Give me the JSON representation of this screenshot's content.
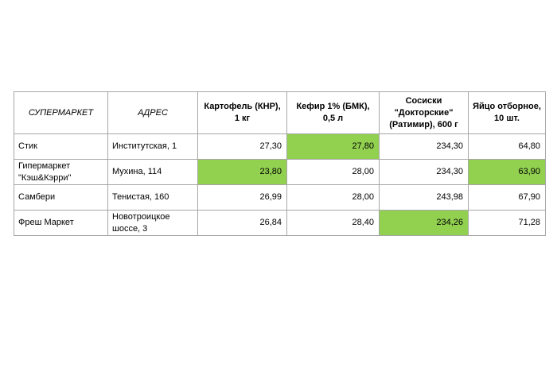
{
  "highlight_color": "#92d050",
  "table": {
    "headers": [
      "СУПЕРМАРКЕТ",
      "АДРЕС",
      "Картофель (КНР),\n1 кг",
      "Кефир 1% (БМК),\n0,5 л",
      "Сосиски\n\"Докторские\"\n(Ратимир), 600 г",
      "Яйцо отборное,\n10 шт."
    ],
    "rows": [
      {
        "store": "Стик",
        "address": "Институтская, 1",
        "potato": "27,30",
        "kefir": "27,80",
        "sausages": "234,30",
        "eggs": "64,80",
        "cheapest": [
          "kefir"
        ]
      },
      {
        "store": "Гипермаркет\n\"Кэш&Кэрри\"",
        "address": "Мухина, 114",
        "potato": "23,80",
        "kefir": "28,00",
        "sausages": "234,30",
        "eggs": "63,90",
        "cheapest": [
          "potato",
          "eggs"
        ]
      },
      {
        "store": "Самбери",
        "address": "Тенистая, 160",
        "potato": "26,99",
        "kefir": "28,00",
        "sausages": "243,98",
        "eggs": "67,90",
        "cheapest": []
      },
      {
        "store": "Фреш Маркет",
        "address": "Новотроицкое\nшоссе, 3",
        "potato": "26,84",
        "kefir": "28,40",
        "sausages": "234,26",
        "eggs": "71,28",
        "cheapest": [
          "sausages"
        ]
      }
    ]
  }
}
